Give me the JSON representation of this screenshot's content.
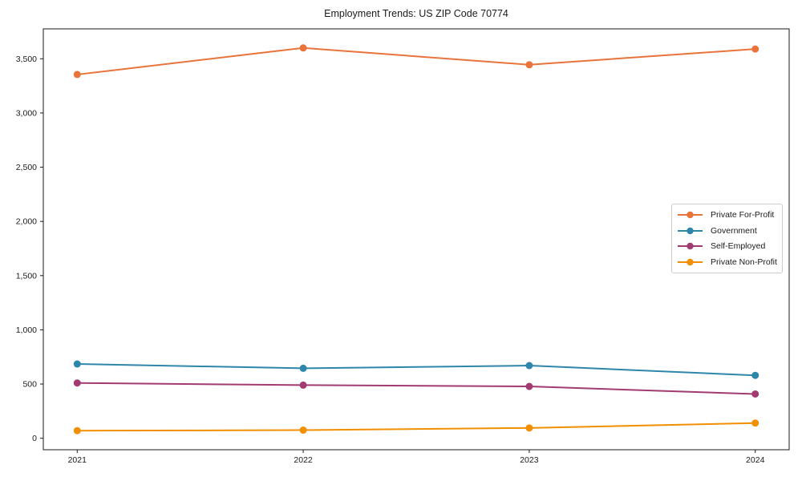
{
  "chart_data": {
    "type": "line",
    "title": "Employment Trends: US ZIP Code 70774",
    "xlabel": "",
    "ylabel": "",
    "x": [
      2021,
      2022,
      2023,
      2024
    ],
    "x_tick_labels": [
      "2021",
      "2022",
      "2023",
      "2024"
    ],
    "series": [
      {
        "name": "Private For-Profit",
        "color": "#E8743B",
        "values": [
          3355,
          3600,
          3445,
          3590
        ]
      },
      {
        "name": "Government",
        "color": "#2E86AB",
        "values": [
          685,
          645,
          670,
          580
        ]
      },
      {
        "name": "Self-Employed",
        "color": "#A23B72",
        "values": [
          510,
          490,
          478,
          408
        ]
      },
      {
        "name": "Private Non-Profit",
        "color": "#F18F01",
        "values": [
          70,
          75,
          95,
          140
        ]
      }
    ],
    "yticks": [
      0,
      500,
      1000,
      1500,
      2000,
      2500,
      3000,
      3500
    ],
    "ytick_labels": [
      "0",
      "500",
      "1,000",
      "1,500",
      "2,000",
      "2,500",
      "3,000",
      "3,500"
    ],
    "ylim": [
      -106,
      3776
    ],
    "xlim": [
      2020.85,
      2024.15
    ],
    "grid": false,
    "legend_position": "center right",
    "marker": "circle",
    "axis_color": "#1a1a1a",
    "background_color": "#ffffff"
  }
}
